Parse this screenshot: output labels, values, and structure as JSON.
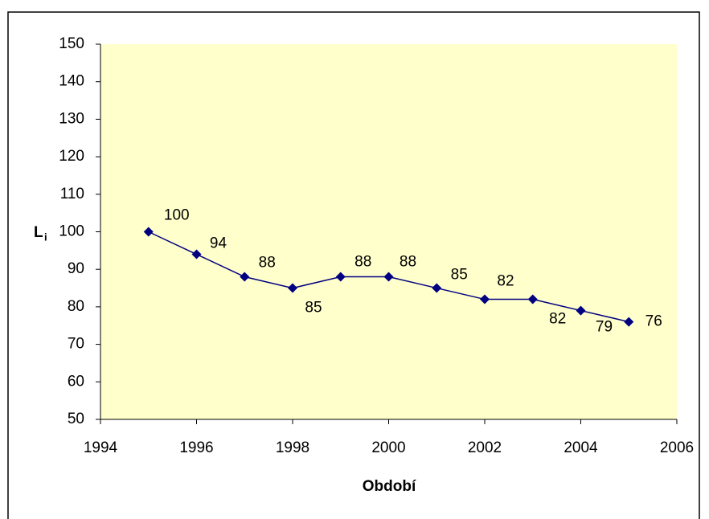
{
  "chart_data": {
    "type": "line",
    "x_label": "Období",
    "y_label": "L",
    "y_label_subscript": "i",
    "x": [
      1995,
      1996,
      1997,
      1998,
      1999,
      2000,
      2001,
      2002,
      2003,
      2004,
      2005
    ],
    "series": [
      {
        "color": "#000080",
        "values": [
          100,
          94,
          88,
          85,
          88,
          88,
          85,
          82,
          82,
          79,
          76
        ]
      }
    ],
    "xlim": [
      1994,
      2006
    ],
    "xticks": [
      1994,
      1996,
      1998,
      2000,
      2002,
      2004,
      2006
    ],
    "ylim": [
      50,
      150
    ],
    "yticks": [
      50,
      60,
      70,
      80,
      90,
      100,
      110,
      120,
      130,
      140,
      150
    ],
    "background": "#ffffcc"
  }
}
